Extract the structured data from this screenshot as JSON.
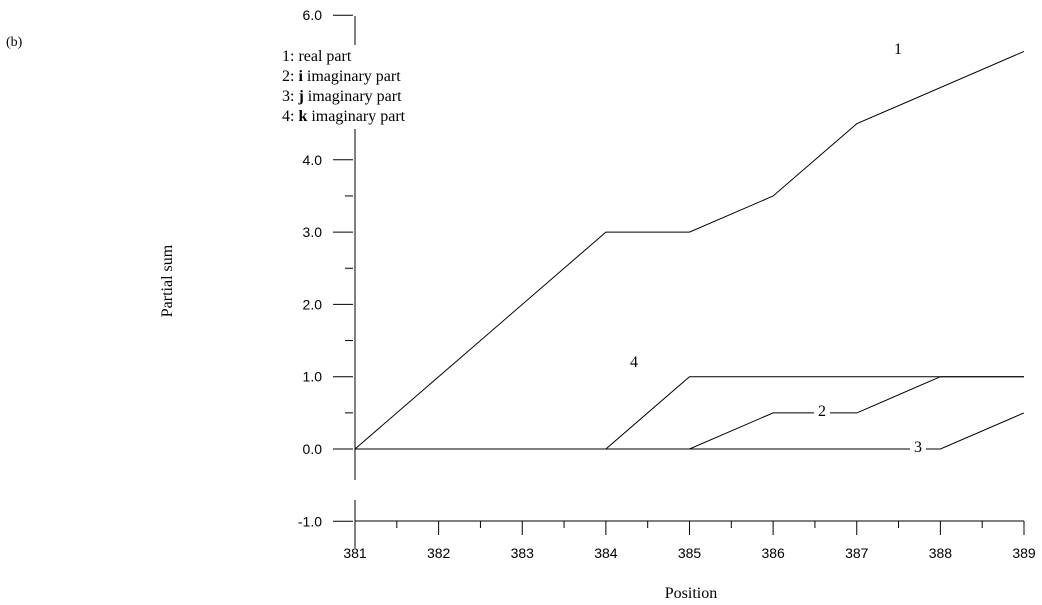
{
  "panel_label": "(b)",
  "chart_data": {
    "type": "line",
    "xlabel": "Position",
    "ylabel": "Partial sum",
    "xlim": [
      381,
      389
    ],
    "ylim": [
      -1.0,
      6.0
    ],
    "x_ticks": [
      "381",
      "382",
      "383",
      "384",
      "385",
      "386",
      "387",
      "388",
      "389"
    ],
    "y_ticks": [
      "6.0",
      "4.0",
      "3.0",
      "2.0",
      "1.0",
      "0.0",
      "-1.0"
    ],
    "grid": false,
    "legend": [
      {
        "id": "1",
        "prefix": "1:",
        "bold": "",
        "text": "real part"
      },
      {
        "id": "2",
        "prefix": "2:",
        "bold": "i",
        "text": "imaginary part"
      },
      {
        "id": "3",
        "prefix": "3:",
        "bold": "j",
        "text": "imaginary part"
      },
      {
        "id": "4",
        "prefix": "4:",
        "bold": "k",
        "text": "imaginary part"
      }
    ],
    "legend_position": "top-left",
    "series": [
      {
        "label": "1",
        "x": [
          381,
          384,
          385,
          386,
          387,
          389
        ],
        "y": [
          0,
          3,
          3,
          3.5,
          4.5,
          5.5
        ]
      },
      {
        "label": "2",
        "x": [
          381,
          385,
          386,
          387,
          388,
          389
        ],
        "y": [
          0,
          0,
          0.5,
          0.5,
          1,
          1
        ]
      },
      {
        "label": "3",
        "x": [
          381,
          388,
          389
        ],
        "y": [
          0,
          0,
          0.5
        ]
      },
      {
        "label": "4",
        "x": [
          381,
          384,
          385,
          389
        ],
        "y": [
          0,
          0,
          1,
          1
        ]
      }
    ]
  }
}
